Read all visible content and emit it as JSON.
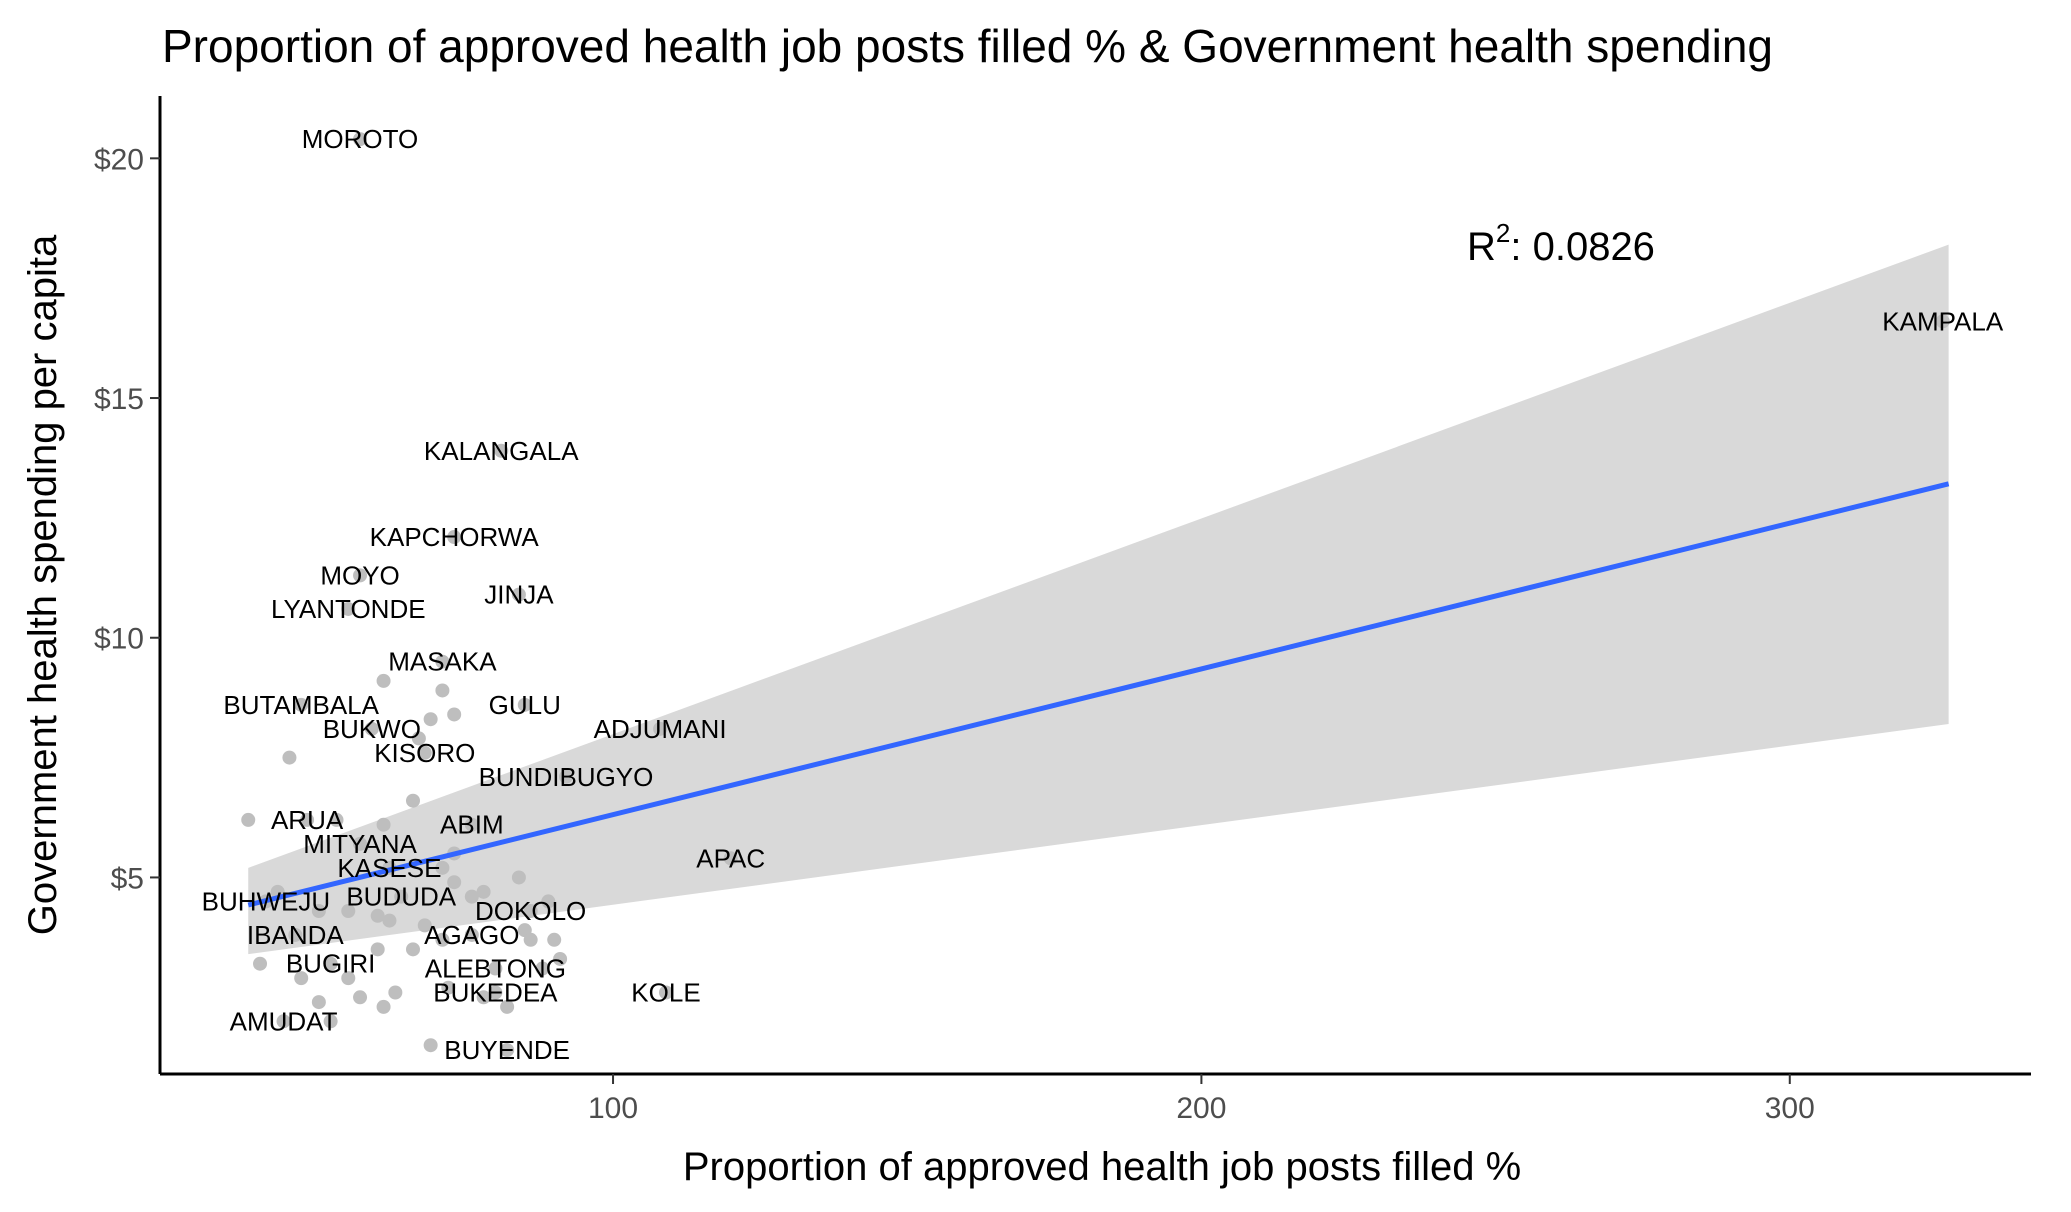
{
  "chart_data": {
    "type": "scatter",
    "title": "Proportion of approved health job posts filled % & Government health spending",
    "xlabel": "Proportion of approved health job posts filled %",
    "ylabel": "Government health spending per capita",
    "xlim": [
      23,
      341
    ],
    "ylim": [
      0.9,
      21.3
    ],
    "x_ticks": [
      100,
      200,
      300
    ],
    "x_tick_labels": [
      "100",
      "200",
      "300"
    ],
    "y_ticks": [
      5,
      10,
      15,
      20
    ],
    "y_tick_labels": [
      "$5",
      "$10",
      "$15",
      "$20"
    ],
    "grid": false,
    "r_squared_label": {
      "r": "R",
      "exp": "2",
      "rest": ": 0.0826"
    },
    "trend": {
      "x_range": [
        38,
        327
      ],
      "intercept": 3.27,
      "slope": 0.0304,
      "ci_lower": [
        3.4,
        8.2
      ],
      "ci_upper": [
        5.2,
        18.2
      ],
      "line_color": "#3366ff",
      "band_color": "#d9d9d9"
    },
    "point_color": "#bebebe",
    "labeled_points": [
      {
        "name": "MOROTO",
        "x": 57,
        "y": 20.4
      },
      {
        "name": "KAMPALA",
        "x": 326,
        "y": 16.6
      },
      {
        "name": "KALANGALA",
        "x": 81,
        "y": 13.9
      },
      {
        "name": "KAPCHORWA",
        "x": 73,
        "y": 12.1
      },
      {
        "name": "MOYO",
        "x": 57,
        "y": 11.3
      },
      {
        "name": "JINJA",
        "x": 84,
        "y": 10.9
      },
      {
        "name": "LYANTONDE",
        "x": 55,
        "y": 10.6
      },
      {
        "name": "MASAKA",
        "x": 71,
        "y": 9.5
      },
      {
        "name": "BUTAMBALA",
        "x": 47,
        "y": 8.6
      },
      {
        "name": "GULU",
        "x": 85,
        "y": 8.6
      },
      {
        "name": "ADJUMANI",
        "x": 108,
        "y": 8.1
      },
      {
        "name": "BUKWO",
        "x": 59,
        "y": 8.1
      },
      {
        "name": "KISORO",
        "x": 68,
        "y": 7.6
      },
      {
        "name": "BUNDIBUGYO",
        "x": 92,
        "y": 7.1
      },
      {
        "name": "ABIM",
        "x": 76,
        "y": 6.1
      },
      {
        "name": "ARUA",
        "x": 48,
        "y": 6.2
      },
      {
        "name": "MITYANA",
        "x": 57,
        "y": 5.7
      },
      {
        "name": "APAC",
        "x": 120,
        "y": 5.4
      },
      {
        "name": "KASESE",
        "x": 62,
        "y": 5.2
      },
      {
        "name": "BUHWEJU",
        "x": 41,
        "y": 4.5
      },
      {
        "name": "BUDUDA",
        "x": 64,
        "y": 4.6
      },
      {
        "name": "DOKOLO",
        "x": 86,
        "y": 4.3
      },
      {
        "name": "IBANDA",
        "x": 46,
        "y": 3.8
      },
      {
        "name": "AGAGO",
        "x": 76,
        "y": 3.8
      },
      {
        "name": "BUGIRI",
        "x": 52,
        "y": 3.2
      },
      {
        "name": "ALEBTONG",
        "x": 80,
        "y": 3.1
      },
      {
        "name": "BUKEDEA",
        "x": 80,
        "y": 2.6
      },
      {
        "name": "KOLE",
        "x": 109,
        "y": 2.6
      },
      {
        "name": "AMUDAT",
        "x": 44,
        "y": 2.0
      },
      {
        "name": "BUYENDE",
        "x": 82,
        "y": 1.4
      }
    ],
    "points": [
      [
        57,
        20.4
      ],
      [
        326,
        16.6
      ],
      [
        81,
        13.9
      ],
      [
        73,
        12.1
      ],
      [
        57,
        11.3
      ],
      [
        84,
        10.9
      ],
      [
        55,
        10.6
      ],
      [
        71,
        9.5
      ],
      [
        47,
        8.6
      ],
      [
        85,
        8.6
      ],
      [
        108,
        8.1
      ],
      [
        59,
        8.1
      ],
      [
        68,
        7.6
      ],
      [
        92,
        7.1
      ],
      [
        76,
        6.1
      ],
      [
        48,
        6.2
      ],
      [
        57,
        5.7
      ],
      [
        120,
        5.4
      ],
      [
        62,
        5.2
      ],
      [
        41,
        4.5
      ],
      [
        64,
        4.6
      ],
      [
        86,
        4.3
      ],
      [
        46,
        3.8
      ],
      [
        76,
        3.8
      ],
      [
        52,
        3.2
      ],
      [
        80,
        3.1
      ],
      [
        80,
        2.6
      ],
      [
        109,
        2.6
      ],
      [
        44,
        2.0
      ],
      [
        82,
        1.4
      ],
      [
        61,
        9.1
      ],
      [
        71,
        8.9
      ],
      [
        73,
        8.4
      ],
      [
        69,
        8.3
      ],
      [
        67,
        7.9
      ],
      [
        45,
        7.5
      ],
      [
        38,
        6.2
      ],
      [
        66,
        6.6
      ],
      [
        53,
        6.2
      ],
      [
        61,
        6.1
      ],
      [
        73,
        5.5
      ],
      [
        71,
        5.2
      ],
      [
        73,
        4.9
      ],
      [
        84,
        5.0
      ],
      [
        78,
        4.7
      ],
      [
        76,
        4.6
      ],
      [
        89,
        4.5
      ],
      [
        43,
        4.7
      ],
      [
        50,
        4.3
      ],
      [
        55,
        4.3
      ],
      [
        60,
        4.2
      ],
      [
        62,
        4.1
      ],
      [
        68,
        4.0
      ],
      [
        71,
        3.7
      ],
      [
        85,
        3.9
      ],
      [
        86,
        3.7
      ],
      [
        90,
        3.7
      ],
      [
        91,
        3.3
      ],
      [
        88,
        3.1
      ],
      [
        66,
        3.5
      ],
      [
        60,
        3.5
      ],
      [
        47,
        2.9
      ],
      [
        55,
        2.9
      ],
      [
        63,
        2.6
      ],
      [
        72,
        2.7
      ],
      [
        78,
        2.5
      ],
      [
        82,
        2.3
      ],
      [
        57,
        2.5
      ],
      [
        61,
        2.3
      ],
      [
        50,
        2.4
      ],
      [
        69,
        1.5
      ],
      [
        40,
        3.2
      ],
      [
        52,
        2.0
      ]
    ]
  }
}
